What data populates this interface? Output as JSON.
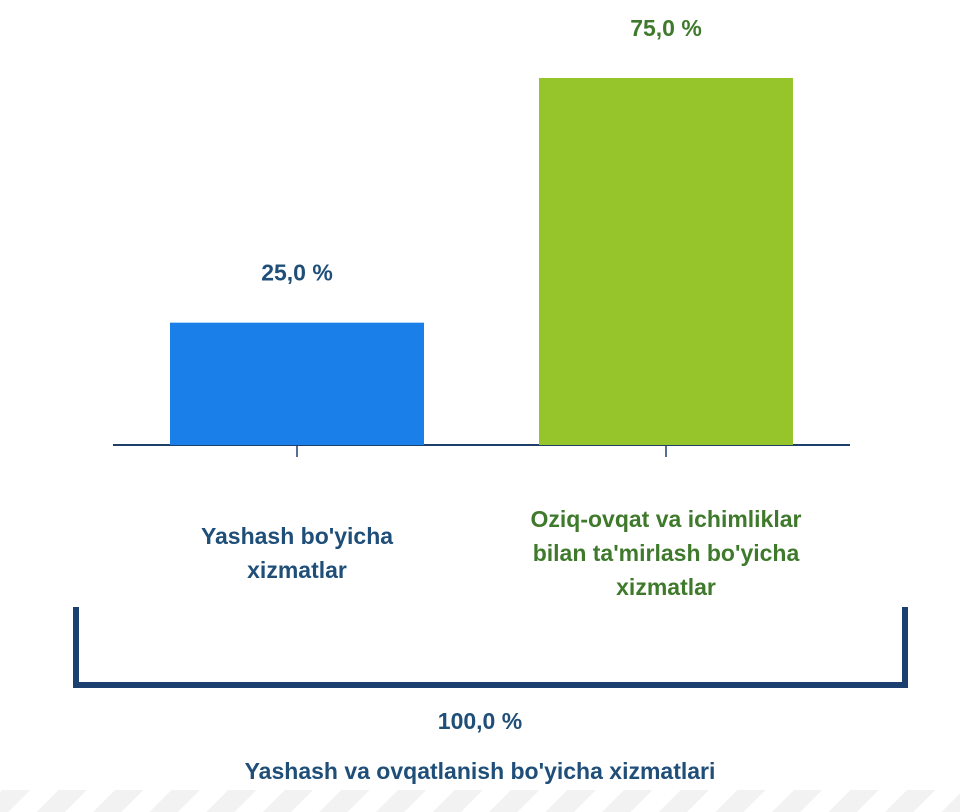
{
  "chart_data": {
    "type": "bar",
    "categories": [
      "Yashash bo'yicha xizmatlar",
      "Oziq-ovqat va ichimliklar bilan ta'mirlash bo'yicha xizmatlar"
    ],
    "values": [
      25,
      75
    ],
    "value_labels": [
      "25,0 %",
      "75,0 %"
    ],
    "colors": [
      "#1a7fe8",
      "#95c52a"
    ],
    "label_colors": [
      "#1f4e79",
      "#3f7a2c"
    ],
    "ylim": [
      0,
      75
    ],
    "total_label": "100,0 %",
    "x_label": "Yashash va ovqatlanish bo'yicha xizmatlari"
  }
}
